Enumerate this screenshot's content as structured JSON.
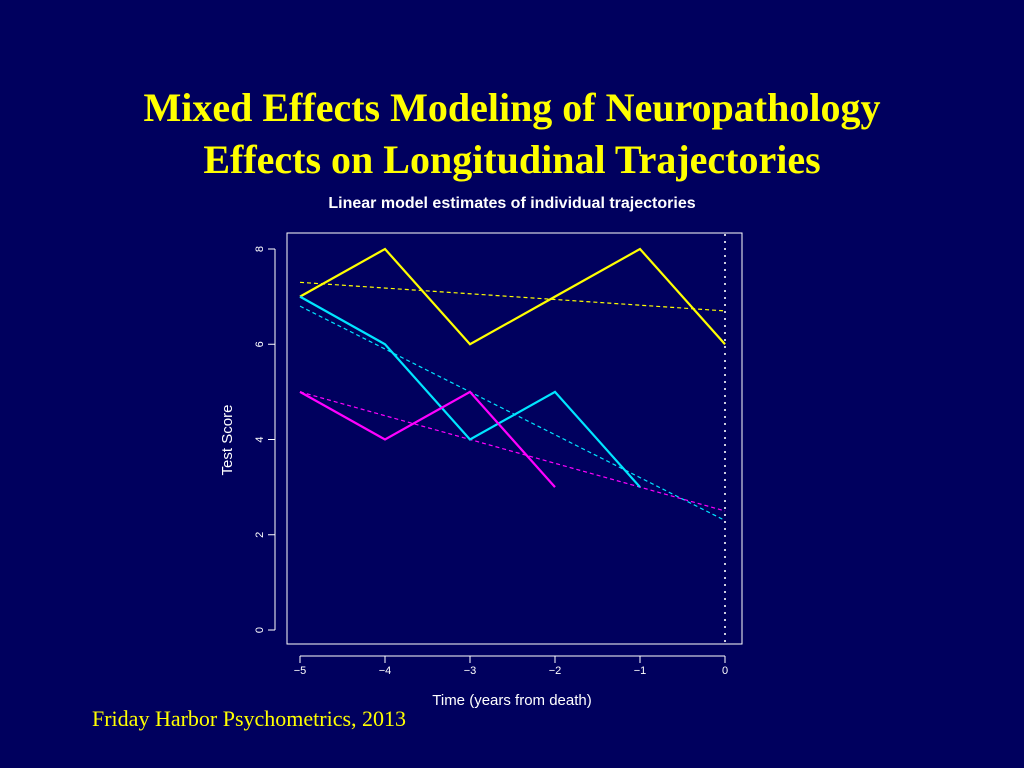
{
  "slide": {
    "title_line1": "Mixed Effects Modeling of Neuropathology",
    "title_line2": "Effects on Longitudinal Trajectories",
    "footer": "Friday Harbor Psychometrics, 2013"
  },
  "colors": {
    "background": "#00005e",
    "title": "#ffff00",
    "axis": "#ffffff"
  },
  "chart_data": {
    "type": "line",
    "title": "Linear model estimates of individual trajectories",
    "xlabel": "Time (years from death)",
    "ylabel": "Test Score",
    "xlim": [
      -5,
      0
    ],
    "ylim": [
      0,
      8
    ],
    "xticks": [
      -5,
      -4,
      -3,
      -2,
      -1,
      0
    ],
    "xtick_labels": [
      "−5",
      "−4",
      "−3",
      "−2",
      "−1",
      "0"
    ],
    "yticks": [
      0,
      2,
      4,
      6,
      8
    ],
    "ytick_labels": [
      "0",
      "2",
      "4",
      "6",
      "8"
    ],
    "grid": false,
    "legend": "none",
    "vline": {
      "x": 0,
      "style": "dotted",
      "color": "#ffffff"
    },
    "series": [
      {
        "color": "#ffff00",
        "x": [
          -5,
          -4,
          -3,
          -2,
          -1,
          0
        ],
        "values": [
          7,
          8,
          6,
          7,
          8,
          6
        ],
        "fit": {
          "x": [
            -5,
            0
          ],
          "values": [
            7.3,
            6.7
          ]
        }
      },
      {
        "color": "#00e5ff",
        "x": [
          -5,
          -4,
          -3,
          -2,
          -1
        ],
        "values": [
          7,
          6,
          4,
          5,
          3
        ],
        "fit": {
          "x": [
            -5,
            0
          ],
          "values": [
            6.8,
            2.3
          ]
        }
      },
      {
        "color": "#ff00ff",
        "x": [
          -5,
          -4,
          -3,
          -2
        ],
        "values": [
          5,
          4,
          5,
          3
        ],
        "fit": {
          "x": [
            -5,
            0
          ],
          "values": [
            5.0,
            2.5
          ]
        }
      }
    ]
  }
}
